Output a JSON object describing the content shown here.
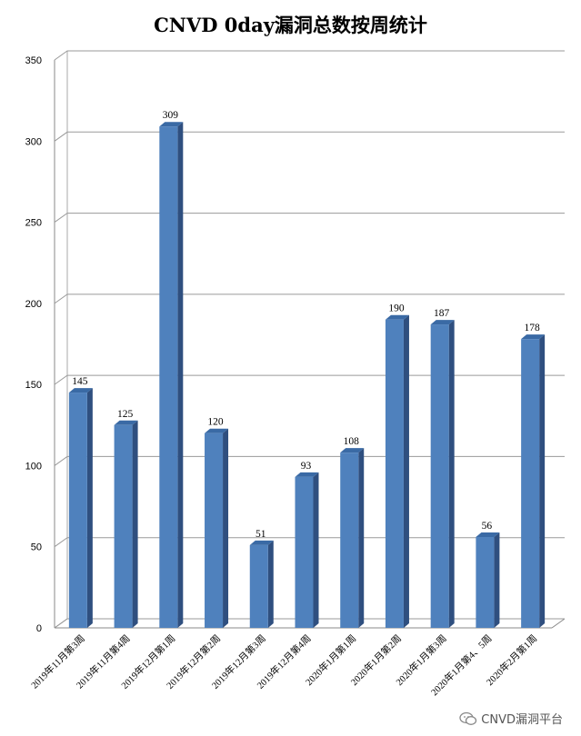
{
  "chart_data": {
    "type": "bar",
    "title": "CNVD 0day漏洞总数按周统计",
    "categories": [
      "2019年11月第3周",
      "2019年11月第4周",
      "2019年12月第1周",
      "2019年12月第2周",
      "2019年12月第3周",
      "2019年12月第4周",
      "2020年1月第1周",
      "2020年1月第2周",
      "2020年1月第3周",
      "2020年1月第4、5周",
      "2020年2月第1周"
    ],
    "values": [
      145,
      125,
      309,
      120,
      51,
      93,
      108,
      190,
      187,
      56,
      178
    ],
    "ylim": [
      0,
      350
    ],
    "yticks": [
      0,
      50,
      100,
      150,
      200,
      250,
      300,
      350
    ],
    "grid": true,
    "legend": "none",
    "bar_color": "#4F81BD",
    "bar_side_color": "#2F4F7F",
    "bar_top_color": "#3A6AA5"
  },
  "watermark": {
    "text": "CNVD漏洞平台",
    "icon": "wechat-icon"
  }
}
